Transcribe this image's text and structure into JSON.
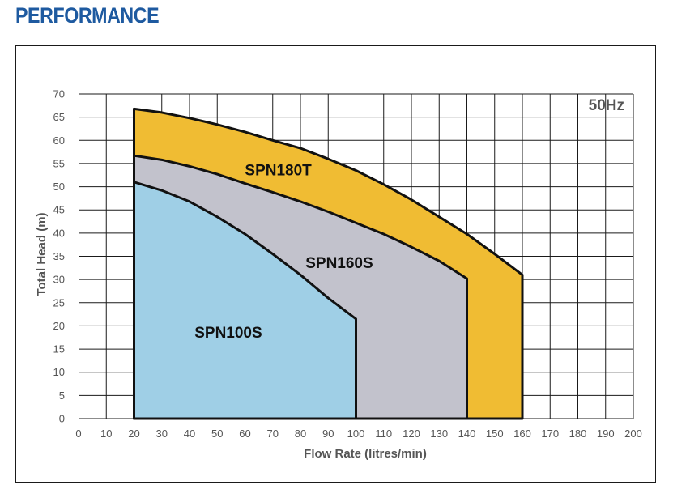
{
  "page": {
    "heading": "PERFORMANCE"
  },
  "chart_data": {
    "type": "area",
    "title": "",
    "annotation": "50Hz",
    "xlabel": "Flow Rate (litres/min)",
    "ylabel": "Total Head (m)",
    "xlim": [
      0,
      200
    ],
    "ylim": [
      0,
      70
    ],
    "x_ticks": [
      0,
      10,
      20,
      30,
      40,
      50,
      60,
      70,
      80,
      90,
      100,
      110,
      120,
      130,
      140,
      150,
      160,
      170,
      180,
      190,
      200
    ],
    "y_ticks": [
      0,
      5,
      10,
      15,
      20,
      25,
      30,
      35,
      40,
      45,
      50,
      55,
      60,
      65,
      70
    ],
    "grid": true,
    "legend": "none",
    "series": [
      {
        "name": "SPN180T",
        "color": "#f0bc33",
        "label_at": [
          72,
          52.5
        ],
        "points": [
          [
            20,
            66.8
          ],
          [
            30,
            66
          ],
          [
            40,
            64.8
          ],
          [
            50,
            63.4
          ],
          [
            60,
            61.8
          ],
          [
            70,
            60
          ],
          [
            80,
            58.3
          ],
          [
            90,
            56
          ],
          [
            100,
            53.5
          ],
          [
            110,
            50.5
          ],
          [
            120,
            47.2
          ],
          [
            130,
            43.5
          ],
          [
            140,
            39.8
          ],
          [
            150,
            35.5
          ],
          [
            160,
            31
          ]
        ]
      },
      {
        "name": "SPN160S",
        "color": "#c2c2cc",
        "label_at": [
          94,
          32.5
        ],
        "points": [
          [
            20,
            56.7
          ],
          [
            30,
            55.8
          ],
          [
            40,
            54.4
          ],
          [
            50,
            52.7
          ],
          [
            60,
            50.7
          ],
          [
            70,
            48.8
          ],
          [
            80,
            46.8
          ],
          [
            90,
            44.6
          ],
          [
            100,
            42.2
          ],
          [
            110,
            39.8
          ],
          [
            120,
            37
          ],
          [
            130,
            34
          ],
          [
            140,
            30.2
          ]
        ]
      },
      {
        "name": "SPN100S",
        "color": "#9fcfe6",
        "label_at": [
          54,
          17.5
        ],
        "points": [
          [
            20,
            51
          ],
          [
            30,
            49.2
          ],
          [
            40,
            46.8
          ],
          [
            50,
            43.5
          ],
          [
            60,
            39.8
          ],
          [
            70,
            35.5
          ],
          [
            80,
            31
          ],
          [
            90,
            26
          ],
          [
            100,
            21.5
          ]
        ]
      }
    ]
  }
}
